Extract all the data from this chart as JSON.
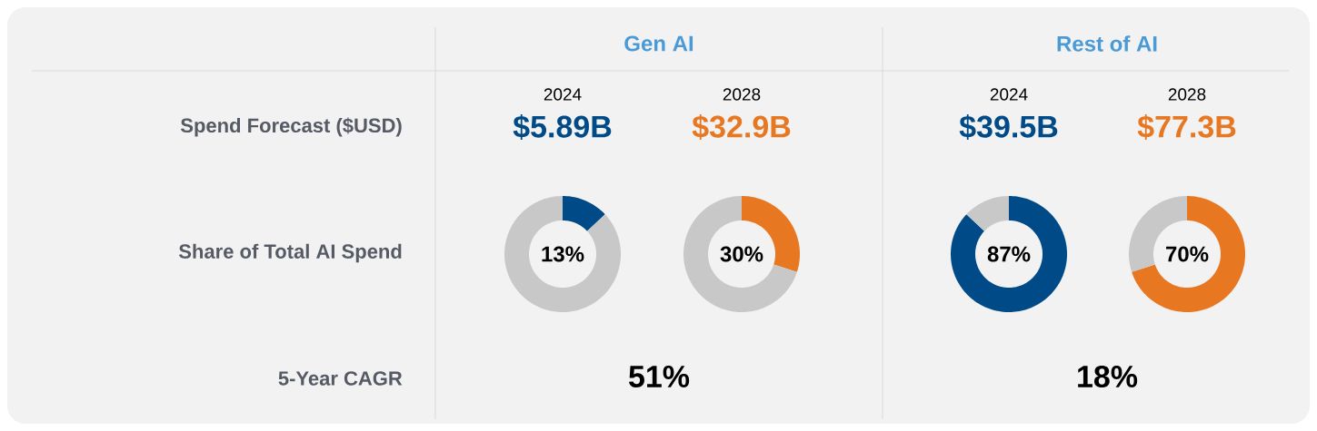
{
  "chart_data": [
    {
      "type": "other",
      "annotations": [
        "Gen AI",
        "Rest of AI",
        "Spend Forecast ($USD)",
        "Share of Total AI Spend",
        "5-Year CAGR",
        "51%",
        "18%"
      ]
    },
    {
      "type": "donut",
      "title": "2024",
      "subtitle": "$5.89B",
      "categories": [
        null,
        null
      ],
      "values": [
        13,
        87
      ],
      "colors": [
        "#004b87",
        "#c8c8c8"
      ],
      "annotations": [
        "13%"
      ]
    },
    {
      "type": "donut",
      "title": "2028",
      "subtitle": "$32.9B",
      "categories": [
        null,
        null
      ],
      "values": [
        30,
        70
      ],
      "colors": [
        "#e87722",
        "#c8c8c8"
      ],
      "annotations": [
        "30%"
      ]
    },
    {
      "type": "donut",
      "title": "2024",
      "subtitle": "$39.5B",
      "categories": [
        null,
        null
      ],
      "values": [
        87,
        13
      ],
      "colors": [
        "#004b87",
        "#c8c8c8"
      ],
      "annotations": [
        "87%"
      ]
    },
    {
      "type": "donut",
      "title": "2028",
      "subtitle": "$77.3B",
      "categories": [
        null,
        null
      ],
      "values": [
        70,
        30
      ],
      "colors": [
        "#e87722",
        "#c8c8c8"
      ],
      "annotations": [
        "70%"
      ]
    }
  ]
}
